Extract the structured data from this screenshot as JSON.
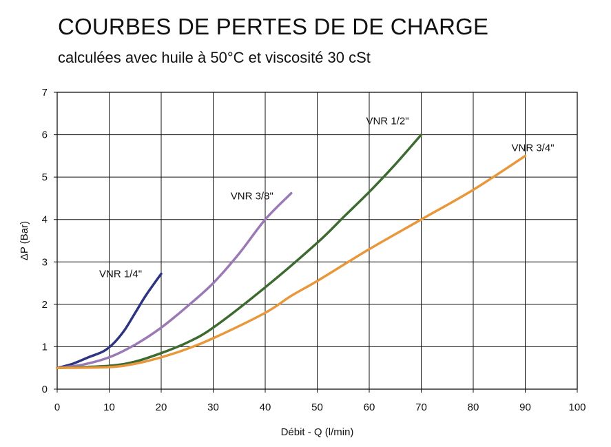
{
  "chart_data": {
    "type": "line",
    "title": "COURBES DE PERTES DE DE CHARGE",
    "subtitle": "calculées avec huile à 50°C et viscosité 30 cSt",
    "xlabel": "Débit - Q (l/min)",
    "ylabel": "ΔP (Bar)",
    "xlim": [
      0,
      100
    ],
    "ylim": [
      0,
      7
    ],
    "xticks": [
      0,
      10,
      20,
      30,
      40,
      50,
      60,
      70,
      80,
      90,
      100
    ],
    "yticks": [
      0,
      1,
      2,
      3,
      4,
      5,
      6,
      7
    ],
    "grid": true,
    "series": [
      {
        "name": "VNR 1/4\"",
        "color": "#2e3480",
        "points": [
          [
            0,
            0.5
          ],
          [
            3,
            0.6
          ],
          [
            6,
            0.75
          ],
          [
            9,
            0.9
          ],
          [
            11,
            1.1
          ],
          [
            13,
            1.4
          ],
          [
            15,
            1.8
          ],
          [
            17,
            2.2
          ],
          [
            19,
            2.55
          ],
          [
            20,
            2.72
          ]
        ]
      },
      {
        "name": "VNR 3/8\"",
        "color": "#9b79b4",
        "points": [
          [
            0,
            0.5
          ],
          [
            5,
            0.58
          ],
          [
            10,
            0.75
          ],
          [
            15,
            1.05
          ],
          [
            20,
            1.45
          ],
          [
            25,
            1.95
          ],
          [
            30,
            2.5
          ],
          [
            35,
            3.2
          ],
          [
            40,
            4.0
          ],
          [
            45,
            4.62
          ]
        ]
      },
      {
        "name": "VNR 1/2\"",
        "color": "#3d6a30",
        "points": [
          [
            0,
            0.5
          ],
          [
            10,
            0.55
          ],
          [
            15,
            0.65
          ],
          [
            20,
            0.85
          ],
          [
            25,
            1.1
          ],
          [
            30,
            1.45
          ],
          [
            40,
            2.4
          ],
          [
            50,
            3.45
          ],
          [
            55,
            4.05
          ],
          [
            60,
            4.65
          ],
          [
            65,
            5.3
          ],
          [
            70,
            6.0
          ]
        ]
      },
      {
        "name": "VNR 3/4\"",
        "color": "#e8973a",
        "points": [
          [
            0,
            0.5
          ],
          [
            10,
            0.52
          ],
          [
            15,
            0.6
          ],
          [
            20,
            0.75
          ],
          [
            25,
            0.95
          ],
          [
            30,
            1.2
          ],
          [
            40,
            1.8
          ],
          [
            45,
            2.2
          ],
          [
            50,
            2.55
          ],
          [
            60,
            3.3
          ],
          [
            70,
            4.0
          ],
          [
            80,
            4.7
          ],
          [
            90,
            5.5
          ]
        ]
      }
    ]
  }
}
